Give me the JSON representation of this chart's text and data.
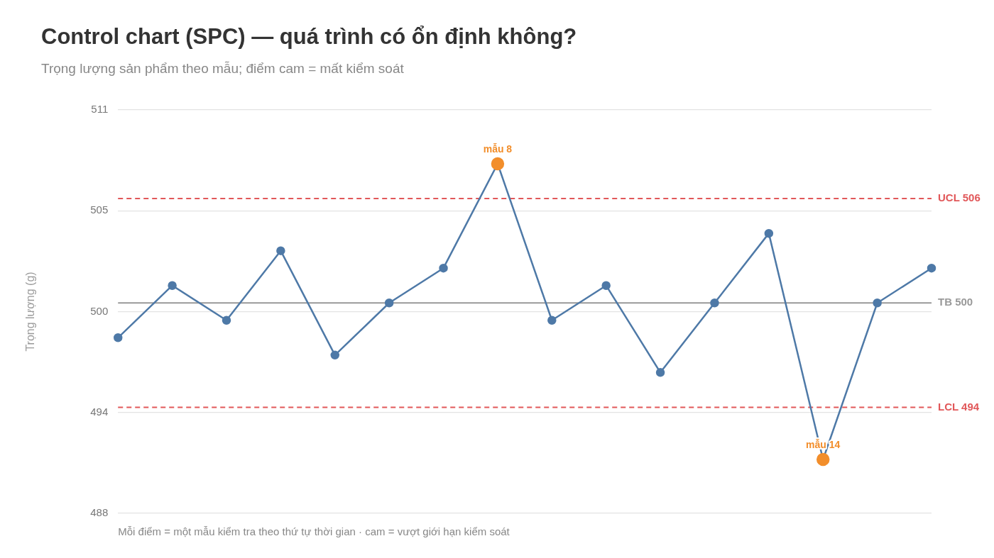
{
  "chart_data": {
    "type": "line",
    "title": "Control chart (SPC) — quá trình có ổn định không?",
    "subtitle": "Trọng lượng sản phẩm theo mẫu; điểm cam = mất kiểm soát",
    "ylabel": "Trọng lượng (g)",
    "categories": [
      null,
      null,
      null,
      null,
      null,
      null,
      null,
      null,
      null,
      null,
      null,
      null,
      null,
      null,
      null,
      null
    ],
    "series": [
      {
        "color": "#4e79a7",
        "colors": [
          "#4e79a7",
          "#4e79a7",
          "#4e79a7",
          "#4e79a7",
          "#4e79a7",
          "#4e79a7",
          "#4e79a7",
          "#f28e2b",
          "#4e79a7",
          "#4e79a7",
          "#4e79a7",
          "#4e79a7",
          "#4e79a7",
          "#f28e2b",
          "#4e79a7",
          "#4e79a7"
        ],
        "values": [
          498,
          501,
          499,
          503,
          497,
          500,
          502,
          508,
          499,
          501,
          496,
          500,
          504,
          491,
          500,
          502
        ],
        "value_labels": [
          null,
          null,
          null,
          null,
          null,
          null,
          null,
          "mẫu 8",
          null,
          null,
          null,
          null,
          null,
          "mẫu 14",
          null,
          null
        ]
      }
    ],
    "ylim": [
      487.9,
      511.1
    ],
    "yticks": [
      {
        "value": 487.9,
        "label": "488"
      },
      {
        "value": 493.7,
        "label": "494"
      },
      {
        "value": 499.5,
        "label": "500"
      },
      {
        "value": 505.3,
        "label": "505"
      },
      {
        "value": 511.1,
        "label": "511"
      }
    ],
    "ref_lines": [
      {
        "axis": "y",
        "value": 506,
        "label": "UCL 506",
        "color": "#e15759",
        "line_style": "dashed"
      },
      {
        "axis": "y",
        "value": 494,
        "label": "LCL 494",
        "color": "#e15759",
        "line_style": "dashed"
      },
      {
        "axis": "y",
        "value": 500,
        "label": "TB 500",
        "color": "#999999",
        "line_style": "solid"
      }
    ],
    "annotations": [
      "Mỗi điểm = một mẫu kiểm tra theo thứ tự thời gian · cam = vượt giới hạn kiểm soát"
    ],
    "grid": "y",
    "marker": "circle",
    "line_style": "solid",
    "tick_labels": "y"
  }
}
